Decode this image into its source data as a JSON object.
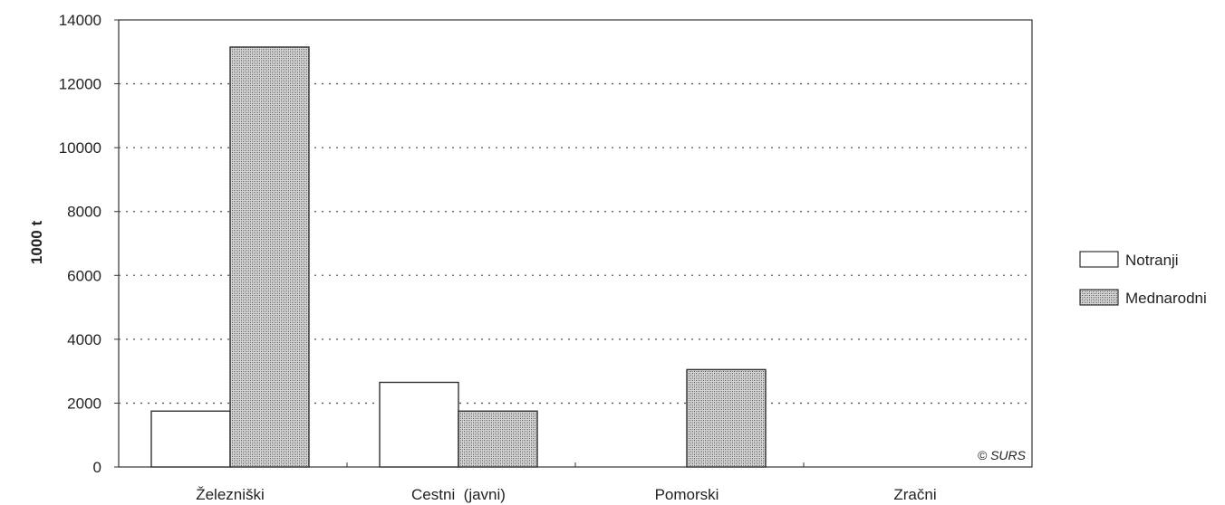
{
  "chart_data": {
    "type": "bar",
    "categories": [
      "Železniški",
      "Cestni (javni)",
      "Pomorski",
      "Zračni"
    ],
    "category_labels": [
      "Železniški",
      "Cestni  (javni)",
      "Pomorski",
      "Zračni"
    ],
    "series": [
      {
        "name": "Notranji",
        "values": [
          1750,
          2650,
          0,
          0
        ]
      },
      {
        "name": "Mednarodni",
        "values": [
          13150,
          1750,
          3050,
          0
        ]
      }
    ],
    "ylabel": "1000 t",
    "ylim": [
      0,
      14000
    ],
    "yticks": [
      0,
      2000,
      4000,
      6000,
      8000,
      10000,
      12000,
      14000
    ],
    "grid": "dotted horizontal",
    "legend_position": "right",
    "annotation": "© SURS",
    "colors": {
      "Notranji": "#ffffff",
      "Mednarodni": "#b8b8b8",
      "axis": "#333333",
      "grid": "#555555"
    }
  }
}
